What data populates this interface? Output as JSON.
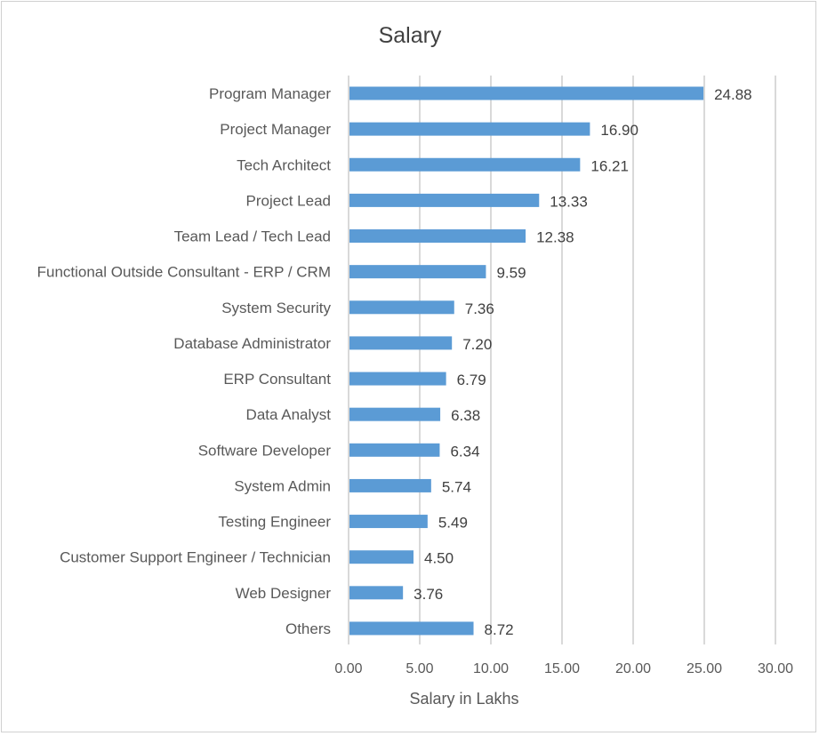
{
  "chart_data": {
    "type": "bar",
    "orientation": "horizontal",
    "title": "Salary",
    "xlabel": "Salary in Lakhs",
    "ylabel": "",
    "xlim": [
      0,
      30
    ],
    "grid": true,
    "bar_color": "#5b9bd5",
    "categories": [
      "Program Manager",
      "Project Manager",
      "Tech Architect",
      "Project Lead",
      "Team Lead / Tech Lead",
      "Functional Outside Consultant - ERP / CRM",
      "System Security",
      "Database Administrator",
      "ERP Consultant",
      "Data Analyst",
      "Software Developer",
      "System Admin",
      "Testing Engineer",
      "Customer Support Engineer / Technician",
      "Web Designer",
      "Others"
    ],
    "values": [
      24.88,
      16.9,
      16.21,
      13.33,
      12.38,
      9.59,
      7.36,
      7.2,
      6.79,
      6.38,
      6.34,
      5.74,
      5.49,
      4.5,
      3.76,
      8.72
    ],
    "value_labels": [
      "24.88",
      "16.90",
      "16.21",
      "13.33",
      "12.38",
      "9.59",
      "7.36",
      "7.20",
      "6.79",
      "6.38",
      "6.34",
      "5.74",
      "5.49",
      "4.50",
      "3.76",
      "8.72"
    ],
    "x_ticks": [
      0,
      5,
      10,
      15,
      20,
      25,
      30
    ],
    "x_tick_labels": [
      "0.00",
      "5.00",
      "10.00",
      "15.00",
      "20.00",
      "25.00",
      "30.00"
    ]
  }
}
